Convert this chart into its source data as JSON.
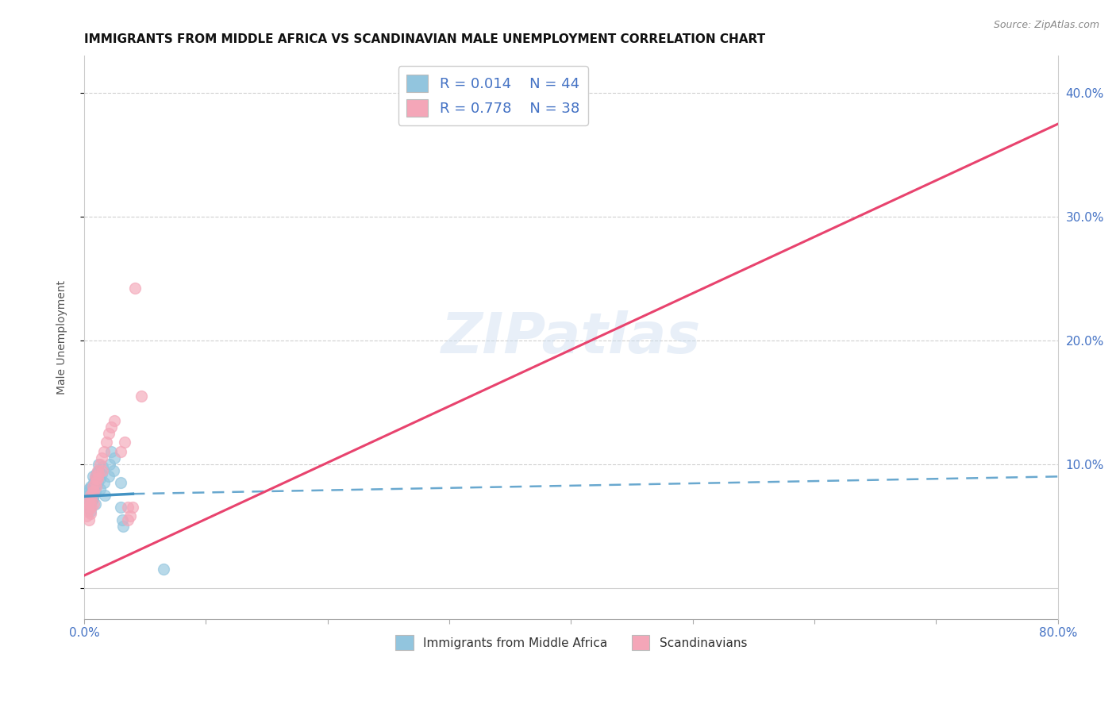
{
  "title": "IMMIGRANTS FROM MIDDLE AFRICA VS SCANDINAVIAN MALE UNEMPLOYMENT CORRELATION CHART",
  "source": "Source: ZipAtlas.com",
  "ylabel_label": "Male Unemployment",
  "xlim": [
    0.0,
    0.8
  ],
  "ylim": [
    -0.025,
    0.43
  ],
  "xticks": [
    0.0,
    0.1,
    0.2,
    0.3,
    0.4,
    0.5,
    0.6,
    0.7,
    0.8
  ],
  "yticks_right": [
    0.0,
    0.1,
    0.2,
    0.3,
    0.4
  ],
  "ytick_labels_right": [
    "",
    "10.0%",
    "20.0%",
    "30.0%",
    "40.0%"
  ],
  "legend_r1": "R = 0.014",
  "legend_n1": "N = 44",
  "legend_r2": "R = 0.778",
  "legend_n2": "N = 38",
  "color_blue": "#92c5de",
  "color_pink": "#f4a6b8",
  "color_blue_dark": "#4393c3",
  "color_pink_dark": "#e8436e",
  "watermark": "ZIPatlas",
  "blue_scatter": [
    [
      0.002,
      0.072
    ],
    [
      0.003,
      0.068
    ],
    [
      0.003,
      0.075
    ],
    [
      0.004,
      0.065
    ],
    [
      0.004,
      0.07
    ],
    [
      0.004,
      0.078
    ],
    [
      0.004,
      0.08
    ],
    [
      0.005,
      0.062
    ],
    [
      0.005,
      0.068
    ],
    [
      0.005,
      0.072
    ],
    [
      0.005,
      0.076
    ],
    [
      0.005,
      0.082
    ],
    [
      0.006,
      0.07
    ],
    [
      0.006,
      0.075
    ],
    [
      0.006,
      0.08
    ],
    [
      0.007,
      0.072
    ],
    [
      0.007,
      0.08
    ],
    [
      0.007,
      0.09
    ],
    [
      0.008,
      0.075
    ],
    [
      0.008,
      0.085
    ],
    [
      0.009,
      0.068
    ],
    [
      0.009,
      0.078
    ],
    [
      0.009,
      0.088
    ],
    [
      0.01,
      0.082
    ],
    [
      0.01,
      0.092
    ],
    [
      0.011,
      0.085
    ],
    [
      0.012,
      0.095
    ],
    [
      0.012,
      0.1
    ],
    [
      0.013,
      0.08
    ],
    [
      0.013,
      0.088
    ],
    [
      0.014,
      0.092
    ],
    [
      0.015,
      0.098
    ],
    [
      0.016,
      0.085
    ],
    [
      0.017,
      0.075
    ],
    [
      0.02,
      0.09
    ],
    [
      0.021,
      0.1
    ],
    [
      0.022,
      0.11
    ],
    [
      0.024,
      0.095
    ],
    [
      0.025,
      0.105
    ],
    [
      0.03,
      0.085
    ],
    [
      0.03,
      0.065
    ],
    [
      0.031,
      0.055
    ],
    [
      0.032,
      0.05
    ],
    [
      0.065,
      0.015
    ]
  ],
  "pink_scatter": [
    [
      0.002,
      0.058
    ],
    [
      0.003,
      0.062
    ],
    [
      0.003,
      0.068
    ],
    [
      0.004,
      0.055
    ],
    [
      0.004,
      0.065
    ],
    [
      0.004,
      0.07
    ],
    [
      0.005,
      0.06
    ],
    [
      0.005,
      0.068
    ],
    [
      0.005,
      0.075
    ],
    [
      0.006,
      0.065
    ],
    [
      0.006,
      0.072
    ],
    [
      0.007,
      0.078
    ],
    [
      0.007,
      0.082
    ],
    [
      0.008,
      0.068
    ],
    [
      0.008,
      0.078
    ],
    [
      0.009,
      0.085
    ],
    [
      0.009,
      0.09
    ],
    [
      0.01,
      0.082
    ],
    [
      0.01,
      0.088
    ],
    [
      0.011,
      0.088
    ],
    [
      0.011,
      0.095
    ],
    [
      0.012,
      0.092
    ],
    [
      0.013,
      0.1
    ],
    [
      0.014,
      0.105
    ],
    [
      0.015,
      0.095
    ],
    [
      0.016,
      0.11
    ],
    [
      0.018,
      0.118
    ],
    [
      0.02,
      0.125
    ],
    [
      0.022,
      0.13
    ],
    [
      0.025,
      0.135
    ],
    [
      0.03,
      0.11
    ],
    [
      0.033,
      0.118
    ],
    [
      0.036,
      0.055
    ],
    [
      0.036,
      0.065
    ],
    [
      0.038,
      0.058
    ],
    [
      0.04,
      0.065
    ],
    [
      0.047,
      0.155
    ],
    [
      0.042,
      0.242
    ]
  ],
  "blue_trendline_solid": {
    "x": [
      0.0,
      0.04
    ],
    "y": [
      0.074,
      0.076
    ]
  },
  "blue_trendline_dashed": {
    "x": [
      0.04,
      0.8
    ],
    "y": [
      0.076,
      0.09
    ]
  },
  "pink_trendline": {
    "x": [
      0.0,
      0.8
    ],
    "y": [
      0.01,
      0.375
    ]
  },
  "grid_color": "#d0d0d0",
  "grid_linestyle": "--",
  "background_color": "#ffffff",
  "title_fontsize": 11,
  "axis_label_fontsize": 10,
  "tick_fontsize": 11,
  "legend_fontsize": 13
}
